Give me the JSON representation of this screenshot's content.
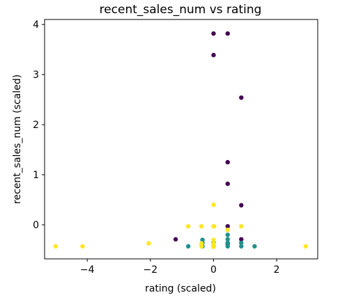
{
  "chart_data": {
    "type": "scatter",
    "title": "recent_sales_num vs rating",
    "xlabel": "rating (scaled)",
    "ylabel": "recent_sales_num (scaled)",
    "xlim": [
      -5.35,
      3.3
    ],
    "ylim": [
      -0.68,
      4.1
    ],
    "xticks": [
      -4,
      -2,
      0,
      2
    ],
    "xtick_labels": [
      "−4",
      "−2",
      "0",
      "2"
    ],
    "yticks": [
      0,
      1,
      2,
      3,
      4
    ],
    "ytick_labels": [
      "0",
      "1",
      "2",
      "3",
      "4"
    ],
    "grid": false,
    "legend": null,
    "series": [
      {
        "color": "#440154",
        "points": [
          {
            "x": 0.0,
            "y": 3.82
          },
          {
            "x": 0.45,
            "y": 3.82
          },
          {
            "x": 0.0,
            "y": 3.39
          },
          {
            "x": 0.88,
            "y": 2.54
          },
          {
            "x": 0.45,
            "y": 1.25
          },
          {
            "x": 0.45,
            "y": 0.82
          },
          {
            "x": 0.88,
            "y": 0.39
          },
          {
            "x": 0.45,
            "y": -0.03
          },
          {
            "x": -1.2,
            "y": -0.29
          },
          {
            "x": 0.88,
            "y": -0.29
          },
          {
            "x": 0.45,
            "y": -0.38
          }
        ]
      },
      {
        "color": "#21918c",
        "points": [
          {
            "x": -0.8,
            "y": -0.43
          },
          {
            "x": -0.35,
            "y": -0.3
          },
          {
            "x": -0.35,
            "y": -0.36
          },
          {
            "x": -0.35,
            "y": -0.43
          },
          {
            "x": 0.0,
            "y": -0.36
          },
          {
            "x": 0.0,
            "y": -0.43
          },
          {
            "x": 0.45,
            "y": -0.2
          },
          {
            "x": 0.45,
            "y": -0.29
          },
          {
            "x": 0.45,
            "y": -0.36
          },
          {
            "x": 0.45,
            "y": -0.43
          },
          {
            "x": 0.88,
            "y": -0.36
          },
          {
            "x": 0.88,
            "y": -0.43
          },
          {
            "x": 1.3,
            "y": -0.43
          }
        ]
      },
      {
        "color": "#fde725",
        "points": [
          {
            "x": -5.0,
            "y": -0.43
          },
          {
            "x": -4.15,
            "y": -0.43
          },
          {
            "x": -2.05,
            "y": -0.37
          },
          {
            "x": -0.8,
            "y": -0.03
          },
          {
            "x": -0.38,
            "y": -0.03
          },
          {
            "x": -0.38,
            "y": -0.37
          },
          {
            "x": -0.38,
            "y": -0.43
          },
          {
            "x": 0.0,
            "y": 0.4
          },
          {
            "x": 0.0,
            "y": -0.03
          },
          {
            "x": 0.02,
            "y": -0.03
          },
          {
            "x": 0.0,
            "y": -0.3
          },
          {
            "x": 0.0,
            "y": -0.38
          },
          {
            "x": 0.0,
            "y": -0.44
          },
          {
            "x": 0.45,
            "y": -0.1
          },
          {
            "x": 0.88,
            "y": -0.03
          },
          {
            "x": 2.92,
            "y": -0.43
          }
        ]
      }
    ]
  }
}
